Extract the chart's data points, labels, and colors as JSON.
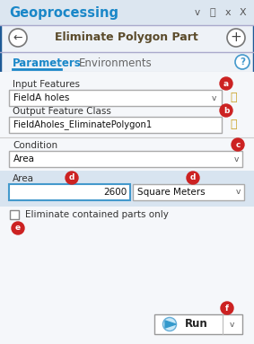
{
  "title": "Geoprocessing",
  "subtitle": "Eliminate Polygon Part",
  "tab1": "Parameters",
  "tab2": "Environments",
  "bg_color": "#eef2f7",
  "content_bg": "#f5f7fa",
  "border_color": "#1e5a96",
  "label_color": "#333333",
  "title_color": "#1a87c8",
  "subtitle_color": "#5a4a2a",
  "input_border": "#aaaaaa",
  "input_active_border": "#4499cc",
  "field1_label": "Input Features",
  "field1_value": "FieldA holes",
  "field2_label": "Output Feature Class",
  "field2_value": "FieldAholes_EliminatePolygon1",
  "field3_label": "Condition",
  "field3_value": "Area",
  "field4_label": "Area",
  "field4_value": "2600",
  "field4b_value": "Square Meters",
  "checkbox_label": "Eliminate contained parts only",
  "run_label": "Run",
  "badge_color": "#cc2222",
  "tab_underline_color": "#1a87c8",
  "folder_color": "#c8a020",
  "header_bg": "#dce6f0",
  "area_section_bg": "#d8e4f0",
  "white": "#ffffff"
}
